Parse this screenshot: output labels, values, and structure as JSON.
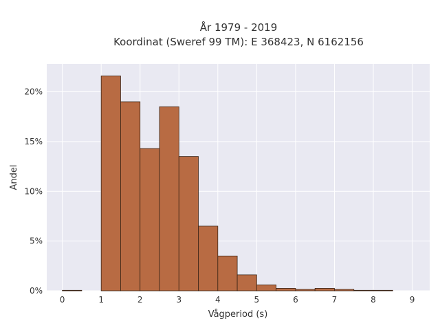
{
  "chart_data": {
    "type": "bar",
    "title_line1": "År 1979 - 2019",
    "title_line2": "Koordinat (Sweref 99 TM): E 368423, N 6162156",
    "xlabel": "Vågperiod (s)",
    "ylabel": "Andel",
    "xlim": [
      -0.4,
      9.45
    ],
    "ylim": [
      0,
      0.228
    ],
    "x_ticks": [
      0,
      1,
      2,
      3,
      4,
      5,
      6,
      7,
      8,
      9
    ],
    "y_ticks": [
      0,
      0.05,
      0.1,
      0.15,
      0.2
    ],
    "y_tick_labels": [
      "0%",
      "5%",
      "10%",
      "15%",
      "20%"
    ],
    "bin_width": 0.5,
    "bin_starts": [
      0,
      1,
      1.5,
      2,
      2.5,
      3,
      3.5,
      4,
      4.5,
      5,
      5.5,
      6,
      6.5,
      7,
      7.5,
      8
    ],
    "values": [
      0.0005,
      0.216,
      0.19,
      0.143,
      0.185,
      0.135,
      0.065,
      0.035,
      0.016,
      0.006,
      0.0025,
      0.0015,
      0.0025,
      0.0015,
      0.0005,
      0.0005
    ],
    "bar_color": "#b86b43",
    "bar_edge_color": "#3a2416",
    "plot_background": "#e9e9f2",
    "grid": true
  }
}
